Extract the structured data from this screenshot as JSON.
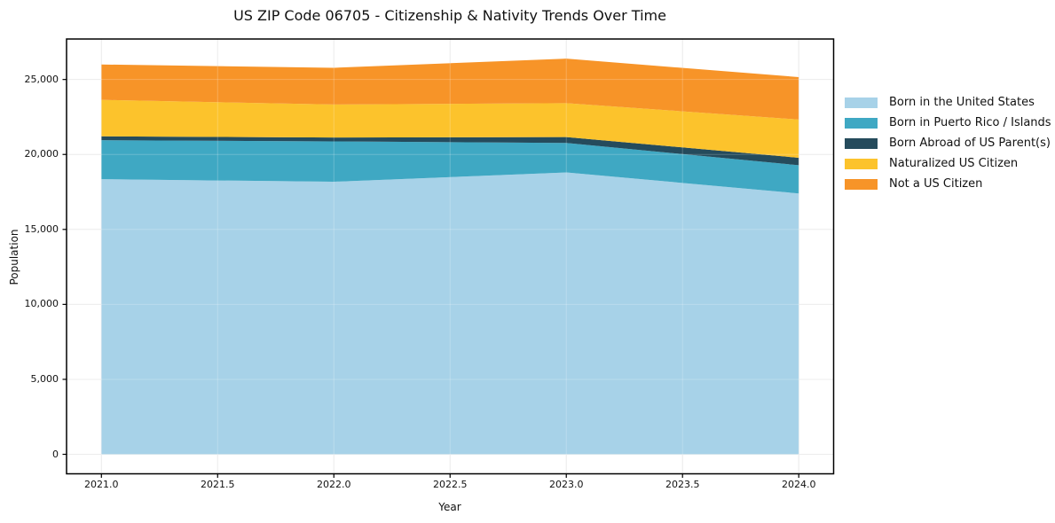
{
  "chart_data": {
    "type": "area",
    "stacked": true,
    "title": "US ZIP Code 06705 - Citizenship & Nativity Trends Over Time",
    "xlabel": "Year",
    "ylabel": "Population",
    "x": [
      2021,
      2022,
      2023,
      2024
    ],
    "x_ticks": [
      2021.0,
      2021.5,
      2022.0,
      2022.5,
      2023.0,
      2023.5,
      2024.0
    ],
    "x_tick_labels": [
      "2021.0",
      "2021.5",
      "2022.0",
      "2022.5",
      "2023.0",
      "2023.5",
      "2024.0"
    ],
    "y_ticks": [
      0,
      5000,
      10000,
      15000,
      20000,
      25000
    ],
    "y_tick_labels": [
      "0",
      "5,000",
      "10,000",
      "15,000",
      "20,000",
      "25,000"
    ],
    "xlim": [
      2020.85,
      2024.15
    ],
    "ylim": [
      -1300,
      27700
    ],
    "grid": true,
    "legend_position": "right",
    "series": [
      {
        "name": "Born in the United States",
        "color": "#a7d2e8",
        "values": [
          18350,
          18180,
          18800,
          17400
        ]
      },
      {
        "name": "Born in Puerto Rico / Islands",
        "color": "#3fa8c3",
        "values": [
          2600,
          2690,
          1970,
          1880
        ]
      },
      {
        "name": "Born Abroad of US Parent(s)",
        "color": "#254b5c",
        "values": [
          260,
          260,
          390,
          500
        ]
      },
      {
        "name": "Naturalized US Citizen",
        "color": "#fcc32c",
        "values": [
          2430,
          2200,
          2260,
          2550
        ]
      },
      {
        "name": "Not a US Citizen",
        "color": "#f79428",
        "values": [
          2360,
          2450,
          2970,
          2830
        ]
      }
    ],
    "colors": {
      "grid": "#e7e7e7",
      "spine": "#000000",
      "background": "#ffffff"
    }
  }
}
